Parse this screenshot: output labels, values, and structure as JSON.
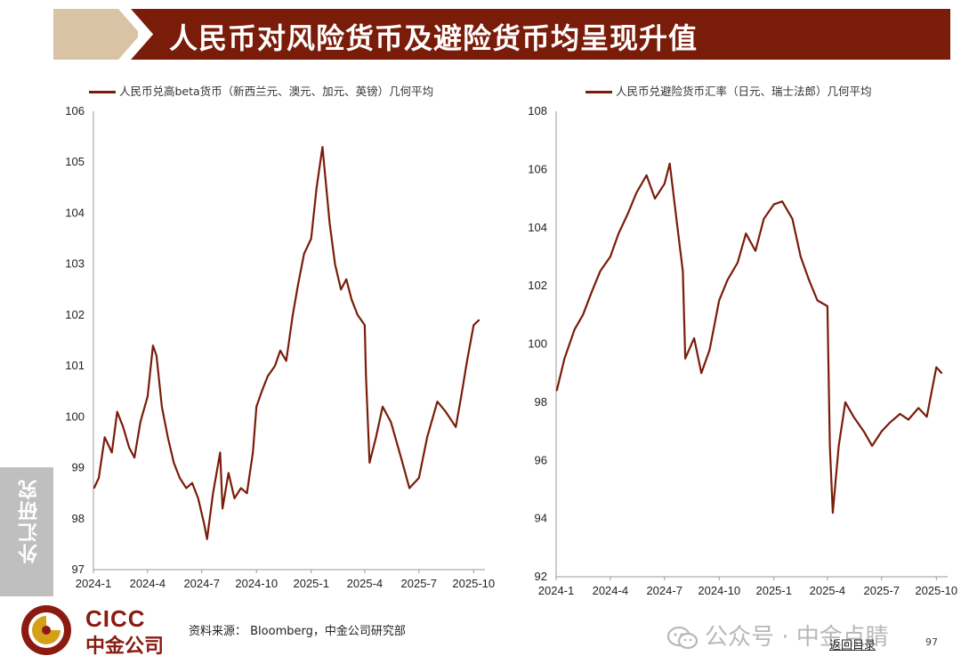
{
  "page": {
    "title": "人民币对风险货币及避险货币均呈现升值",
    "side_tab": "外汇研究",
    "logo_en": "CICC",
    "logo_cn": "中金公司",
    "source": "资料来源： Bloomberg，中金公司研究部",
    "watermark": "公众号 · 中金点睛",
    "toc_link": "返回目录",
    "page_number": "97",
    "colors": {
      "line": "#7a1c0a",
      "banner": "#7a1c0a",
      "banner_accent": "#d8c3a5"
    }
  },
  "chart_data": [
    {
      "type": "line",
      "legend": "人民币兑高beta货币（新西兰元、澳元、加元、英镑）几何平均",
      "ylim": [
        97,
        106
      ],
      "yticks": [
        "97",
        "98",
        "99",
        "100",
        "101",
        "102",
        "103",
        "104",
        "105",
        "106"
      ],
      "xticks": [
        "2024-1",
        "2024-4",
        "2024-7",
        "2024-10",
        "2025-1",
        "2025-4",
        "2025-7",
        "2025-10"
      ],
      "series": [
        {
          "x": [
            "2024-01-02",
            "2024-01-10",
            "2024-01-20",
            "2024-02-01",
            "2024-02-10",
            "2024-02-20",
            "2024-03-01",
            "2024-03-10",
            "2024-03-20",
            "2024-04-01",
            "2024-04-10",
            "2024-04-16",
            "2024-04-25",
            "2024-05-05",
            "2024-05-15",
            "2024-05-25",
            "2024-06-05",
            "2024-06-15",
            "2024-06-25",
            "2024-07-05",
            "2024-07-10",
            "2024-07-20",
            "2024-08-01",
            "2024-08-05",
            "2024-08-15",
            "2024-08-25",
            "2024-09-05",
            "2024-09-15",
            "2024-09-25",
            "2024-10-01",
            "2024-10-10",
            "2024-10-20",
            "2024-11-01",
            "2024-11-10",
            "2024-11-20",
            "2024-12-01",
            "2024-12-10",
            "2024-12-20",
            "2025-01-01",
            "2025-01-10",
            "2025-01-20",
            "2025-02-01",
            "2025-02-10",
            "2025-02-20",
            "2025-03-01",
            "2025-03-10",
            "2025-03-20",
            "2025-04-01",
            "2025-04-03",
            "2025-04-09",
            "2025-04-20",
            "2025-05-01",
            "2025-05-15",
            "2025-06-01",
            "2025-06-15",
            "2025-07-01",
            "2025-07-15",
            "2025-08-01",
            "2025-08-15",
            "2025-09-01",
            "2025-09-10",
            "2025-09-20",
            "2025-10-01",
            "2025-10-10"
          ],
          "values": [
            98.6,
            98.8,
            99.6,
            99.3,
            100.1,
            99.8,
            99.4,
            99.2,
            99.9,
            100.4,
            101.4,
            101.2,
            100.2,
            99.6,
            99.1,
            98.8,
            98.6,
            98.7,
            98.4,
            97.9,
            97.6,
            98.5,
            99.3,
            98.2,
            98.9,
            98.4,
            98.6,
            98.5,
            99.3,
            100.2,
            100.5,
            100.8,
            101.0,
            101.3,
            101.1,
            102.0,
            102.6,
            103.2,
            103.5,
            104.5,
            105.3,
            103.8,
            103.0,
            102.5,
            102.7,
            102.3,
            102.0,
            101.8,
            100.8,
            99.1,
            99.6,
            100.2,
            99.9,
            99.2,
            98.6,
            98.8,
            99.6,
            100.3,
            100.1,
            99.8,
            100.4,
            101.1,
            101.8,
            101.9
          ]
        }
      ]
    },
    {
      "type": "line",
      "legend": "人民币兑避险货币汇率（日元、瑞士法郎）几何平均",
      "ylim": [
        92,
        108
      ],
      "yticks": [
        "92",
        "94",
        "96",
        "98",
        "100",
        "102",
        "104",
        "106",
        "108"
      ],
      "xticks": [
        "2024-1",
        "2024-4",
        "2024-7",
        "2024-10",
        "2025-1",
        "2025-4",
        "2025-7",
        "2025-10"
      ],
      "series": [
        {
          "x": [
            "2024-01-02",
            "2024-01-15",
            "2024-02-01",
            "2024-02-15",
            "2024-03-01",
            "2024-03-15",
            "2024-04-01",
            "2024-04-15",
            "2024-05-01",
            "2024-05-15",
            "2024-06-01",
            "2024-06-15",
            "2024-07-01",
            "2024-07-10",
            "2024-07-20",
            "2024-08-01",
            "2024-08-05",
            "2024-08-20",
            "2024-09-01",
            "2024-09-15",
            "2024-10-01",
            "2024-10-15",
            "2024-11-01",
            "2024-11-15",
            "2024-12-01",
            "2024-12-15",
            "2025-01-01",
            "2025-01-15",
            "2025-02-01",
            "2025-02-15",
            "2025-03-01",
            "2025-03-15",
            "2025-04-01",
            "2025-04-05",
            "2025-04-10",
            "2025-04-20",
            "2025-05-01",
            "2025-05-15",
            "2025-06-01",
            "2025-06-15",
            "2025-07-01",
            "2025-07-15",
            "2025-08-01",
            "2025-08-15",
            "2025-09-01",
            "2025-09-15",
            "2025-10-01",
            "2025-10-10"
          ],
          "values": [
            98.4,
            99.5,
            100.5,
            101.0,
            101.8,
            102.5,
            103.0,
            103.8,
            104.5,
            105.2,
            105.8,
            105.0,
            105.5,
            106.2,
            104.5,
            102.5,
            99.5,
            100.2,
            99.0,
            99.8,
            101.5,
            102.2,
            102.8,
            103.8,
            103.2,
            104.3,
            104.8,
            104.9,
            104.3,
            103.0,
            102.2,
            101.5,
            101.3,
            96.5,
            94.2,
            96.5,
            98.0,
            97.5,
            97.0,
            96.5,
            97.0,
            97.3,
            97.6,
            97.4,
            97.8,
            97.5,
            99.2,
            99.0
          ]
        }
      ]
    }
  ]
}
